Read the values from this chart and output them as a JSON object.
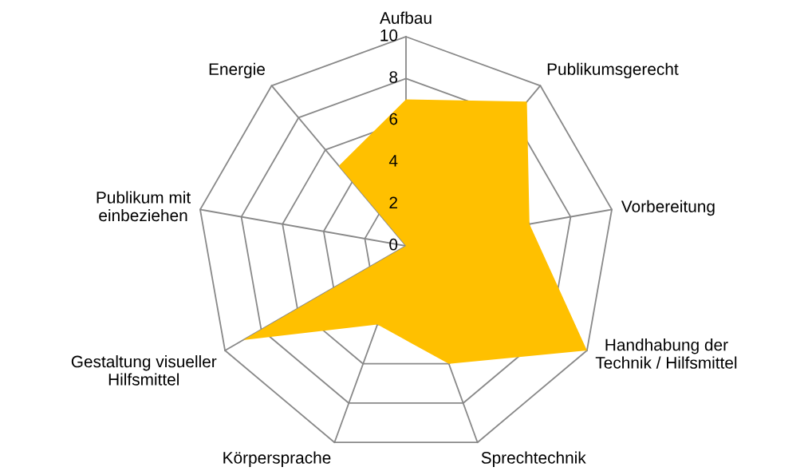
{
  "chart_data": {
    "type": "radar",
    "categories": [
      "Aufbau",
      "Publikumsgerecht",
      "Vorbereitung",
      "Handhabung der\nTechnik / Hilfsmittel",
      "Sprechtechnik",
      "Körpersprache",
      "Gestaltung visueller\nHilfsmittel",
      "Publikum mit\neinbeziehen",
      "Energie"
    ],
    "series": [
      {
        "color": "#ffc000",
        "values": [
          7,
          9,
          6,
          10,
          6,
          4,
          9,
          0,
          5
        ]
      }
    ],
    "ylim": [
      0,
      10
    ],
    "yticks": [
      0,
      2,
      4,
      6,
      8,
      10
    ],
    "grid": true
  }
}
